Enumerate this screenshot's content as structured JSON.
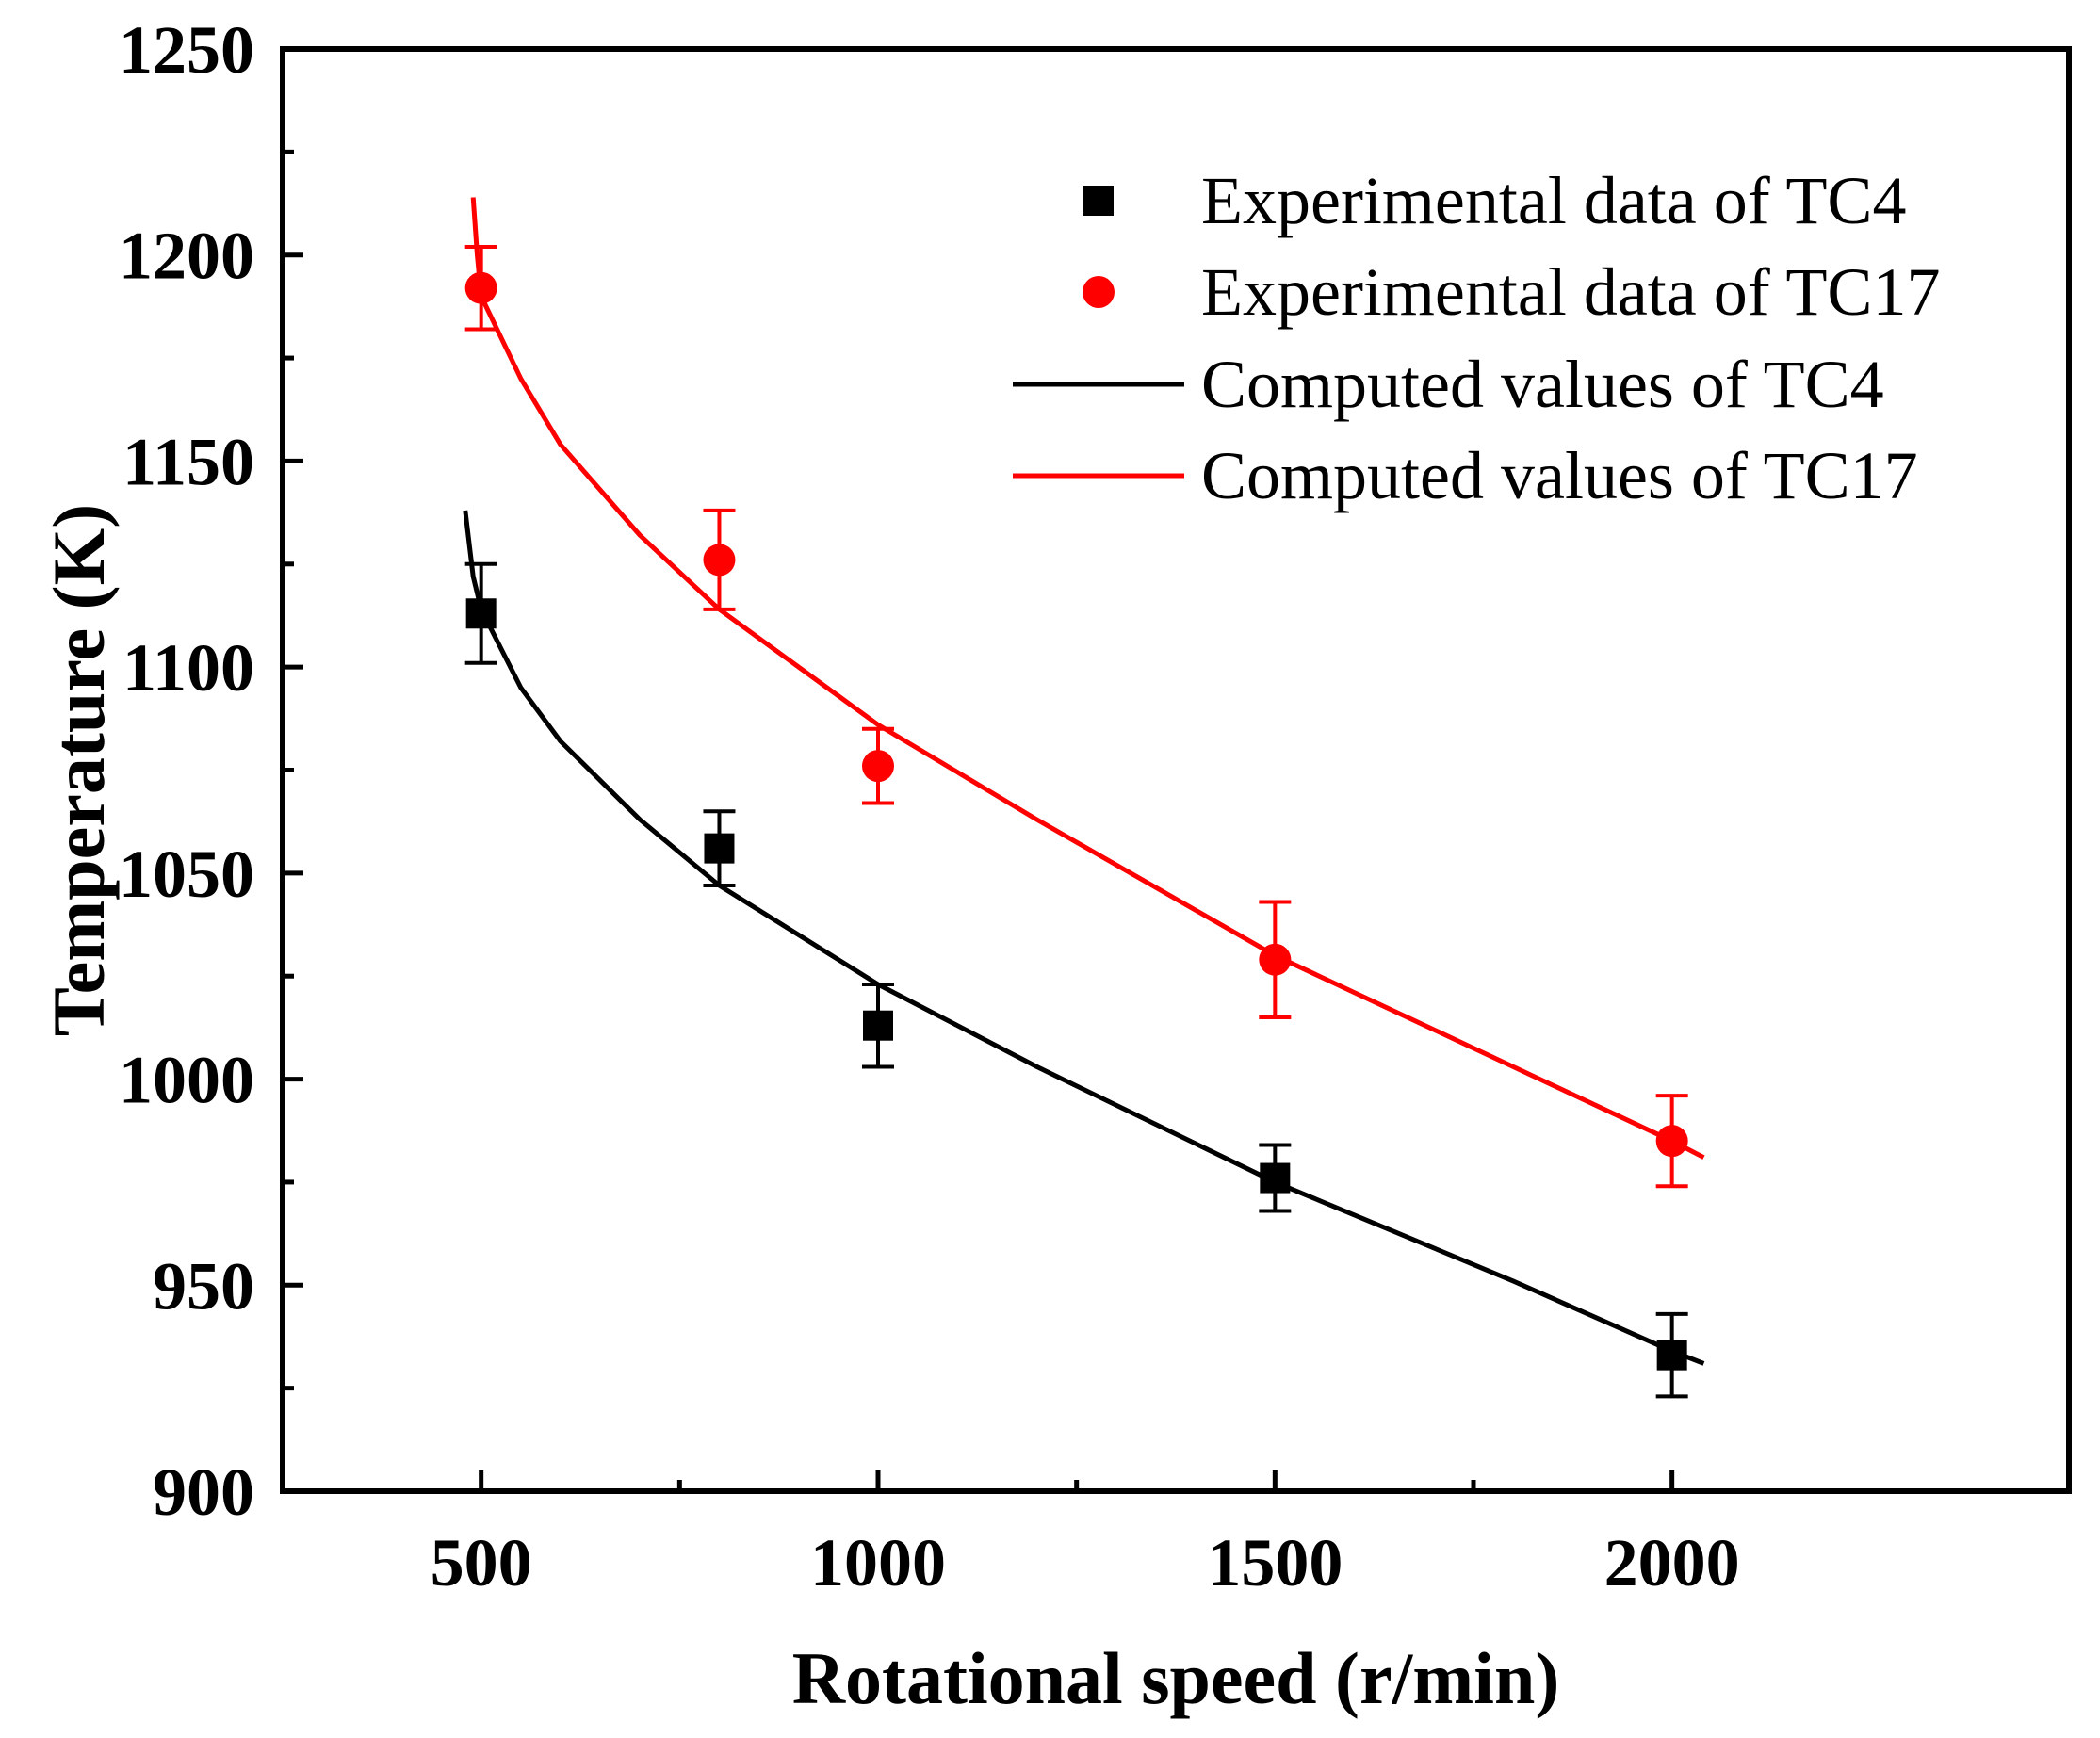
{
  "chart_data": {
    "type": "scatter",
    "title": "",
    "xlabel": "Rotational speed (r/min)",
    "ylabel": "Temperature (K)",
    "xlim": [
      250,
      2500
    ],
    "ylim": [
      900,
      1250
    ],
    "xticks": [
      500,
      1000,
      1500,
      2000
    ],
    "xminor": [
      750,
      1250,
      1750
    ],
    "yticks": [
      900,
      950,
      1000,
      1050,
      1100,
      1150,
      1200,
      1250
    ],
    "grid": false,
    "legend_position": "top-right",
    "series": [
      {
        "name": "Experimental data of TC4",
        "kind": "scatter",
        "marker": "square",
        "color": "#000000",
        "x": [
          500,
          800,
          1000,
          1500,
          2000
        ],
        "y": [
          1113,
          1056,
          1013,
          976,
          933
        ],
        "err": [
          12,
          9,
          10,
          8,
          10
        ]
      },
      {
        "name": "Experimental data of TC17",
        "kind": "scatter",
        "marker": "circle",
        "color": "#ff0000",
        "x": [
          500,
          800,
          1000,
          1500,
          2000
        ],
        "y": [
          1192,
          1126,
          1076,
          1029,
          985
        ],
        "err": [
          10,
          12,
          9,
          14,
          11
        ]
      },
      {
        "name": "Computed values of TC4",
        "kind": "line",
        "color": "#000000",
        "x": [
          480,
          490,
          500,
          550,
          600,
          700,
          800,
          1000,
          1200,
          1500,
          1800,
          2000,
          2040
        ],
        "y": [
          1138,
          1122,
          1114,
          1095,
          1082,
          1063,
          1047,
          1023,
          1003,
          975,
          951,
          934,
          931
        ]
      },
      {
        "name": "Computed values of TC17",
        "kind": "line",
        "color": "#ff0000",
        "x": [
          490,
          495,
          500,
          550,
          600,
          700,
          800,
          1000,
          1200,
          1500,
          1800,
          2000,
          2040
        ],
        "y": [
          1214,
          1200,
          1190,
          1170,
          1154,
          1132,
          1114,
          1086,
          1063,
          1030,
          1003,
          985,
          981
        ]
      }
    ]
  }
}
